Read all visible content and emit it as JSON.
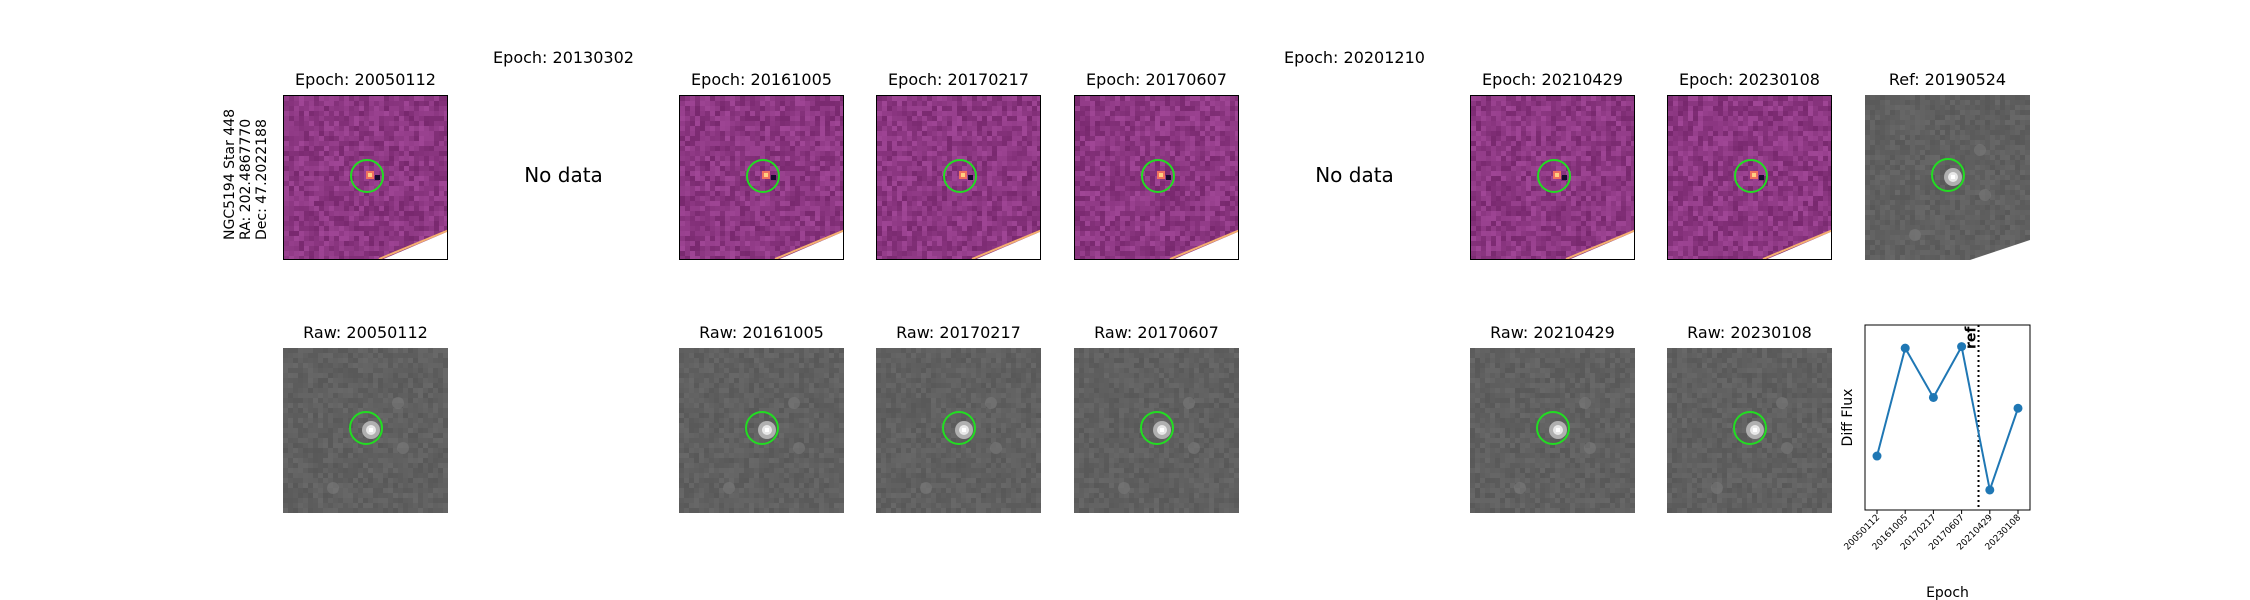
{
  "target_info": {
    "line1": "NGC5194 Star 448",
    "line2": "RA: 202.4867770",
    "line3": "Dec: 47.2022188"
  },
  "no_data_label": "No data",
  "diff_panels": [
    {
      "title": "Epoch: 20050112",
      "has_data": true
    },
    {
      "title": "Epoch: 20130302",
      "has_data": false
    },
    {
      "title": "Epoch: 20161005",
      "has_data": true
    },
    {
      "title": "Epoch: 20170217",
      "has_data": true
    },
    {
      "title": "Epoch: 20170607",
      "has_data": true
    },
    {
      "title": "Epoch: 20201210",
      "has_data": false
    },
    {
      "title": "Epoch: 20210429",
      "has_data": true
    },
    {
      "title": "Epoch: 20230108",
      "has_data": true
    },
    {
      "title": "Ref: 20190524",
      "has_data": true
    }
  ],
  "raw_panels": [
    {
      "title": "Raw: 20050112"
    },
    {
      "title": "Raw: 20161005"
    },
    {
      "title": "Raw: 20170217"
    },
    {
      "title": "Raw: 20170607"
    },
    {
      "title": "Raw: 20210429"
    },
    {
      "title": "Raw: 20230108"
    }
  ],
  "colors": {
    "circle": "#22dd22",
    "series": "#1f77b4",
    "diff_base": "#8c3a86",
    "raw_base": "#5a5a5a"
  },
  "chart_data": {
    "type": "line",
    "title": "",
    "xlabel": "Epoch",
    "ylabel": "Diff Flux",
    "categories": [
      "20050112",
      "20161005",
      "20170217",
      "20170607",
      "20210429",
      "20230108"
    ],
    "values": [
      0.22,
      0.92,
      0.6,
      0.93,
      0.0,
      0.53
    ],
    "ylim": [
      -0.13,
      1.07
    ],
    "ref_line": {
      "label": "ref",
      "x_position": 3.6
    },
    "grid": false
  }
}
